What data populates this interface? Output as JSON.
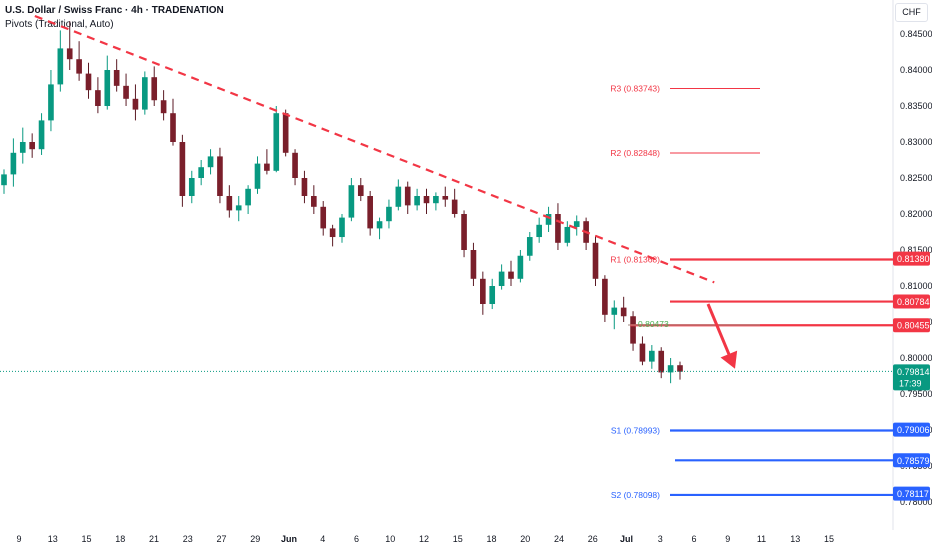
{
  "header": {
    "title": "U.S. Dollar / Swiss Franc · 4h · TRADENATION",
    "indicator": "Pivots (Traditional, Auto)",
    "currency": "CHF"
  },
  "chart_data": {
    "type": "candlestick",
    "ylim": [
      0.7775,
      0.8475
    ],
    "y_ticks": [
      "0.84500",
      "0.84000",
      "0.83500",
      "0.83000",
      "0.82500",
      "0.82000",
      "0.81500",
      "0.81000",
      "0.80500",
      "0.80000",
      "0.79500",
      "0.79000",
      "0.78500",
      "0.78000"
    ],
    "x_ticks": [
      "9",
      "13",
      "15",
      "18",
      "21",
      "23",
      "27",
      "29",
      "Jun",
      "4",
      "6",
      "10",
      "12",
      "15",
      "18",
      "20",
      "24",
      "26",
      "Jul",
      "3",
      "6",
      "9",
      "11",
      "13",
      "15"
    ],
    "pivots": [
      {
        "label": "R3",
        "value": 0.83743,
        "text": "R3 (0.83743)",
        "color": "#f23645"
      },
      {
        "label": "R2",
        "value": 0.82848,
        "text": "R2 (0.82848)",
        "color": "#f23645"
      },
      {
        "label": "R1",
        "value": 0.81368,
        "text": "R1 (0.81368)",
        "color": "#f23645"
      },
      {
        "label": "S1",
        "value": 0.78993,
        "text": "S1 (0.78993)",
        "color": "#2962ff"
      },
      {
        "label": "S2",
        "value": 0.78098,
        "text": "S2 (0.78098)",
        "color": "#2962ff"
      }
    ],
    "levels": [
      {
        "value": 0.8138,
        "text": "0.81380",
        "color": "#f23645"
      },
      {
        "value": 0.80784,
        "text": "0.80784",
        "color": "#f23645"
      },
      {
        "value": 0.80455,
        "text": "0.80455",
        "color": "#f23645"
      },
      {
        "value": 0.79006,
        "text": "0.79006",
        "color": "#2962ff"
      },
      {
        "value": 0.78579,
        "text": "0.78579",
        "color": "#2962ff"
      },
      {
        "value": 0.78117,
        "text": "0.78117",
        "color": "#2962ff"
      }
    ],
    "marker_label": {
      "value": 0.80473,
      "text": "0.80473",
      "color": "#4caf50"
    },
    "last_price": {
      "value": 0.79814,
      "text": "0.79814",
      "countdown": "17:39",
      "color": "#089981"
    },
    "trendline": {
      "from": [
        0.47,
        0.8475
      ],
      "to": [
        20.6,
        0.8105
      ],
      "color": "#f23645"
    },
    "arrow": {
      "from": [
        16.6,
        0.8075
      ],
      "to": [
        17.5,
        0.7985
      ],
      "color": "#f23645"
    },
    "candles": [
      [
        0.824,
        0.8262,
        0.8228,
        0.8255
      ],
      [
        0.8255,
        0.8305,
        0.8238,
        0.8285
      ],
      [
        0.8285,
        0.832,
        0.827,
        0.83
      ],
      [
        0.83,
        0.8312,
        0.8278,
        0.829
      ],
      [
        0.829,
        0.834,
        0.8282,
        0.833
      ],
      [
        0.833,
        0.84,
        0.8315,
        0.838
      ],
      [
        0.838,
        0.8455,
        0.837,
        0.843
      ],
      [
        0.843,
        0.8468,
        0.84,
        0.8415
      ],
      [
        0.8415,
        0.844,
        0.8385,
        0.8395
      ],
      [
        0.8395,
        0.841,
        0.836,
        0.8372
      ],
      [
        0.8372,
        0.839,
        0.834,
        0.835
      ],
      [
        0.835,
        0.842,
        0.8345,
        0.84
      ],
      [
        0.84,
        0.8415,
        0.837,
        0.8378
      ],
      [
        0.8378,
        0.8395,
        0.835,
        0.836
      ],
      [
        0.836,
        0.838,
        0.833,
        0.8345
      ],
      [
        0.8345,
        0.8398,
        0.8338,
        0.839
      ],
      [
        0.839,
        0.8405,
        0.835,
        0.8358
      ],
      [
        0.8358,
        0.8372,
        0.833,
        0.834
      ],
      [
        0.834,
        0.836,
        0.8295,
        0.83
      ],
      [
        0.83,
        0.831,
        0.821,
        0.8225
      ],
      [
        0.8225,
        0.826,
        0.8215,
        0.825
      ],
      [
        0.825,
        0.8275,
        0.824,
        0.8265
      ],
      [
        0.8265,
        0.829,
        0.8255,
        0.828
      ],
      [
        0.828,
        0.8292,
        0.8215,
        0.8225
      ],
      [
        0.8225,
        0.824,
        0.8195,
        0.8205
      ],
      [
        0.8205,
        0.8225,
        0.819,
        0.8212
      ],
      [
        0.8212,
        0.824,
        0.82,
        0.8235
      ],
      [
        0.8235,
        0.828,
        0.8228,
        0.827
      ],
      [
        0.827,
        0.829,
        0.8255,
        0.826
      ],
      [
        0.826,
        0.835,
        0.8258,
        0.834
      ],
      [
        0.834,
        0.8345,
        0.828,
        0.8285
      ],
      [
        0.8285,
        0.829,
        0.824,
        0.825
      ],
      [
        0.825,
        0.826,
        0.8215,
        0.8225
      ],
      [
        0.8225,
        0.824,
        0.82,
        0.821
      ],
      [
        0.821,
        0.8218,
        0.817,
        0.818
      ],
      [
        0.818,
        0.8185,
        0.8155,
        0.8168
      ],
      [
        0.8168,
        0.82,
        0.816,
        0.8195
      ],
      [
        0.8195,
        0.825,
        0.819,
        0.824
      ],
      [
        0.824,
        0.825,
        0.8218,
        0.8225
      ],
      [
        0.8225,
        0.8232,
        0.817,
        0.818
      ],
      [
        0.818,
        0.8195,
        0.8165,
        0.819
      ],
      [
        0.819,
        0.822,
        0.818,
        0.821
      ],
      [
        0.821,
        0.8248,
        0.8205,
        0.8238
      ],
      [
        0.8238,
        0.8245,
        0.82,
        0.8212
      ],
      [
        0.8212,
        0.8235,
        0.8205,
        0.8225
      ],
      [
        0.8225,
        0.8235,
        0.82,
        0.8215
      ],
      [
        0.8215,
        0.823,
        0.8205,
        0.8225
      ],
      [
        0.8225,
        0.8238,
        0.821,
        0.822
      ],
      [
        0.822,
        0.8235,
        0.8195,
        0.82
      ],
      [
        0.82,
        0.8205,
        0.814,
        0.815
      ],
      [
        0.815,
        0.816,
        0.81,
        0.811
      ],
      [
        0.811,
        0.812,
        0.806,
        0.8075
      ],
      [
        0.8075,
        0.811,
        0.8068,
        0.81
      ],
      [
        0.81,
        0.813,
        0.8095,
        0.812
      ],
      [
        0.812,
        0.8135,
        0.81,
        0.811
      ],
      [
        0.811,
        0.815,
        0.8105,
        0.8142
      ],
      [
        0.8142,
        0.8175,
        0.8135,
        0.8168
      ],
      [
        0.8168,
        0.8195,
        0.816,
        0.8185
      ],
      [
        0.8185,
        0.821,
        0.8175,
        0.82
      ],
      [
        0.82,
        0.8215,
        0.815,
        0.816
      ],
      [
        0.816,
        0.819,
        0.8155,
        0.8182
      ],
      [
        0.8182,
        0.8198,
        0.817,
        0.819
      ],
      [
        0.819,
        0.8195,
        0.815,
        0.816
      ],
      [
        0.816,
        0.817,
        0.81,
        0.811
      ],
      [
        0.811,
        0.8115,
        0.805,
        0.806
      ],
      [
        0.806,
        0.808,
        0.804,
        0.807
      ],
      [
        0.807,
        0.8085,
        0.805,
        0.8058
      ],
      [
        0.8058,
        0.8065,
        0.801,
        0.802
      ],
      [
        0.802,
        0.803,
        0.799,
        0.7995
      ],
      [
        0.7995,
        0.8018,
        0.7985,
        0.801
      ],
      [
        0.801,
        0.8015,
        0.7972,
        0.798
      ],
      [
        0.798,
        0.8,
        0.7965,
        0.799
      ],
      [
        0.799,
        0.7995,
        0.797,
        0.7981
      ]
    ]
  }
}
